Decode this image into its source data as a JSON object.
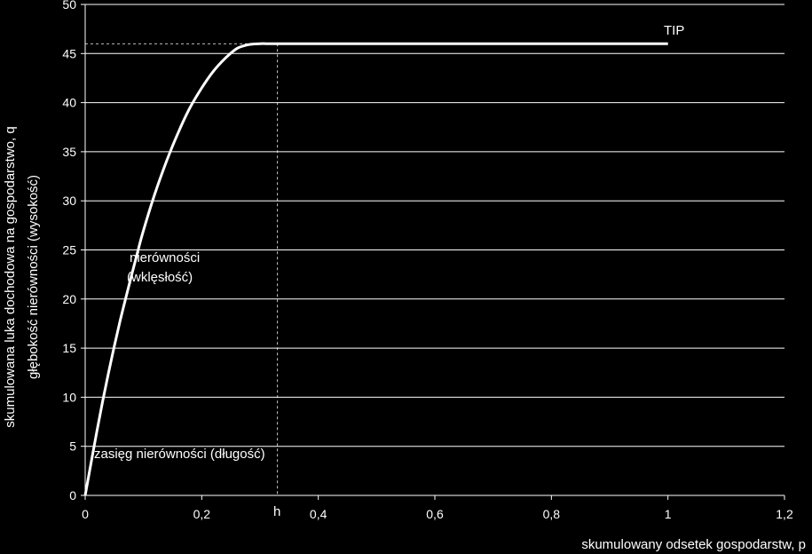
{
  "chart_data": {
    "type": "line",
    "title": "",
    "xlabel": "skumulowany odsetek gospodarstw, p",
    "ylabel_lines": [
      "skumulowana luka dochodowa na gospodarstwo, q",
      "głębokość nierówności (wysokość)"
    ],
    "xlim": [
      0,
      1.2
    ],
    "ylim": [
      0,
      50
    ],
    "x_ticks": [
      "0",
      "0,2",
      "0,4",
      "0,6",
      "0,8",
      "1",
      "1,2"
    ],
    "y_ticks": [
      "0",
      "5",
      "10",
      "15",
      "20",
      "25",
      "30",
      "35",
      "40",
      "45",
      "50"
    ],
    "grid": "horizontal",
    "series": [
      {
        "x": [
          0,
          0.01,
          0.02,
          0.03,
          0.04,
          0.05,
          0.06,
          0.07,
          0.08,
          0.09,
          0.1,
          0.12,
          0.14,
          0.16,
          0.18,
          0.2,
          0.22,
          0.24,
          0.26,
          0.28,
          0.3,
          0.31,
          0.32,
          0.33,
          0.4,
          0.5,
          0.6,
          0.7,
          0.8,
          0.9,
          1.0
        ],
        "values": [
          0,
          3.3,
          6.5,
          9.6,
          12.5,
          15.2,
          17.8,
          20.2,
          22.5,
          24.8,
          27.0,
          30.8,
          34.1,
          37.0,
          39.5,
          41.5,
          43.2,
          44.5,
          45.5,
          45.9,
          46.0,
          46.0,
          46.0,
          46.0,
          46.0,
          46.0,
          46.0,
          46.0,
          46.0,
          46.0,
          46.0
        ]
      }
    ],
    "guide_h": {
      "x": 0.33,
      "y": 46
    },
    "annotations": {
      "tip": "TIP",
      "h": "h",
      "concavity_line1": "nierówności",
      "concavity_line2": "(wklęsłość)",
      "length": "zasięg nierówności (długość)"
    }
  }
}
